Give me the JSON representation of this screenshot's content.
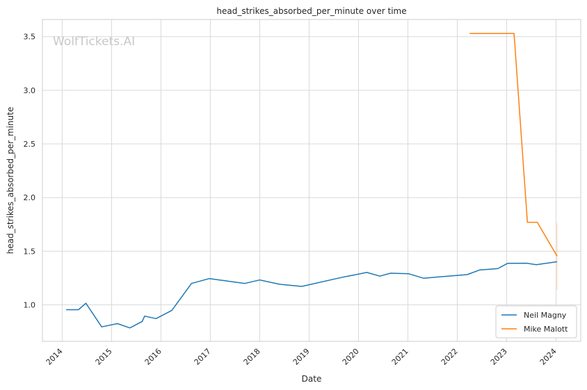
{
  "chart_data": {
    "type": "line",
    "title": "head_strikes_absorbed_per_minute over time",
    "xlabel": "Date",
    "ylabel": "head_strikes_absorbed_per_minute",
    "watermark": "WolfTickets.AI",
    "xlim": [
      2013.6,
      2024.5
    ],
    "ylim": [
      0.66,
      3.66
    ],
    "x_ticks": [
      2014,
      2015,
      2016,
      2017,
      2018,
      2019,
      2020,
      2021,
      2022,
      2023,
      2024
    ],
    "x_tick_labels": [
      "2014",
      "2015",
      "2016",
      "2017",
      "2018",
      "2019",
      "2020",
      "2021",
      "2022",
      "2023",
      "2024"
    ],
    "y_ticks": [
      1.0,
      1.5,
      2.0,
      2.5,
      3.0,
      3.5
    ],
    "y_tick_labels": [
      "1.0",
      "1.5",
      "2.0",
      "2.5",
      "3.0",
      "3.5"
    ],
    "grid": true,
    "legend_position": "bottom-right",
    "series": [
      {
        "name": "Neil Magny",
        "color": "#1f77b4",
        "x": [
          2014.08,
          2014.33,
          2014.48,
          2014.8,
          2015.12,
          2015.37,
          2015.62,
          2015.67,
          2015.9,
          2016.22,
          2016.62,
          2016.98,
          2017.7,
          2018.0,
          2018.4,
          2018.85,
          2019.65,
          2020.17,
          2020.43,
          2020.65,
          2021.02,
          2021.32,
          2021.75,
          2022.2,
          2022.45,
          2022.82,
          2023.02,
          2023.4,
          2023.6,
          2024.02
        ],
        "values": [
          0.955,
          0.955,
          1.015,
          0.795,
          0.825,
          0.785,
          0.845,
          0.895,
          0.872,
          0.948,
          1.2,
          1.245,
          1.2,
          1.232,
          1.192,
          1.172,
          1.255,
          1.302,
          1.268,
          1.295,
          1.29,
          1.248,
          1.265,
          1.282,
          1.325,
          1.338,
          1.387,
          1.388,
          1.375,
          1.402
        ]
      },
      {
        "name": "Mike Malott",
        "color": "#ff7f0e",
        "x": [
          2022.25,
          2023.15,
          2023.42,
          2023.62,
          2024.02
        ],
        "values": [
          3.53,
          3.53,
          1.77,
          1.77,
          1.455
        ]
      }
    ],
    "error_bar": {
      "color": "#ff7f0e",
      "x": 2024.02,
      "low": 1.14,
      "high": 1.76
    }
  }
}
